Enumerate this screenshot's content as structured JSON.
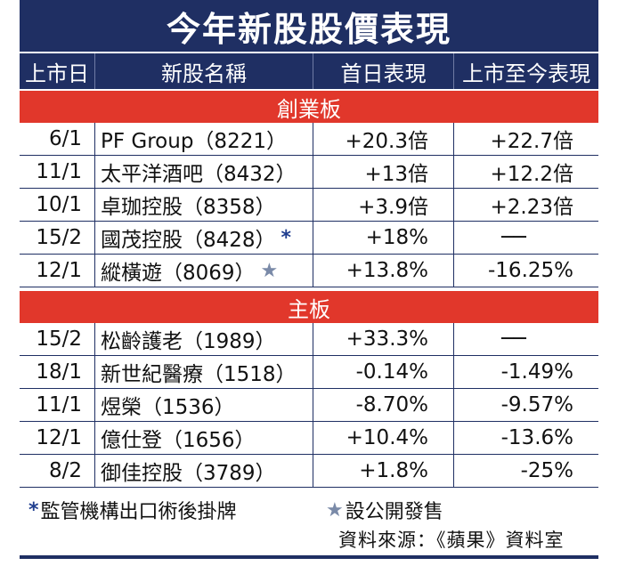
{
  "title": "今年新股股價表現",
  "headers": [
    "上市日",
    "新股名稱",
    "首日表現",
    "上市至今表現"
  ],
  "sections": [
    {
      "label": "創業板",
      "rows": [
        {
          "date": "6/1",
          "name": "PF Group（8221）",
          "first_day": "+20.3倍",
          "to_date": "+22.7倍",
          "mark": ""
        },
        {
          "date": "11/1",
          "name": "太平洋酒吧（8432）",
          "first_day": "+13倍",
          "to_date": "+12.2倍",
          "mark": ""
        },
        {
          "date": "10/1",
          "name": "卓珈控股（8358）",
          "first_day": "+3.9倍",
          "to_date": "+2.23倍",
          "mark": ""
        },
        {
          "date": "15/2",
          "name": "國茂控股（8428）",
          "first_day": "+18%",
          "to_date": "──",
          "mark": "*"
        },
        {
          "date": "12/1",
          "name": "縱橫遊（8069）",
          "first_day": "+13.8%",
          "to_date": "-16.25%",
          "mark": "★"
        }
      ]
    },
    {
      "label": "主板",
      "rows": [
        {
          "date": "15/2",
          "name": "松齡護老（1989）",
          "first_day": "+33.3%",
          "to_date": "──",
          "mark": ""
        },
        {
          "date": "18/1",
          "name": "新世紀醫療（1518）",
          "first_day": "-0.14%",
          "to_date": "-1.49%",
          "mark": ""
        },
        {
          "date": "11/1",
          "name": "煜榮（1536）",
          "first_day": "-8.70%",
          "to_date": "-9.57%",
          "mark": ""
        },
        {
          "date": "12/1",
          "name": "億仕登（1656）",
          "first_day": "+10.4%",
          "to_date": "-13.6%",
          "mark": ""
        },
        {
          "date": "8/2",
          "name": "御佳控股（3789）",
          "first_day": "+1.8%",
          "to_date": "-25%",
          "mark": ""
        }
      ]
    }
  ],
  "legend": {
    "asterisk_symbol": "*",
    "asterisk_text": "監管機構出口術後掛牌",
    "star_symbol": "★",
    "star_text": "設公開發售"
  },
  "source": "資料來源：《蘋果》資料室",
  "colors": {
    "navy": "#1f2f63",
    "red": "#e1372b"
  }
}
